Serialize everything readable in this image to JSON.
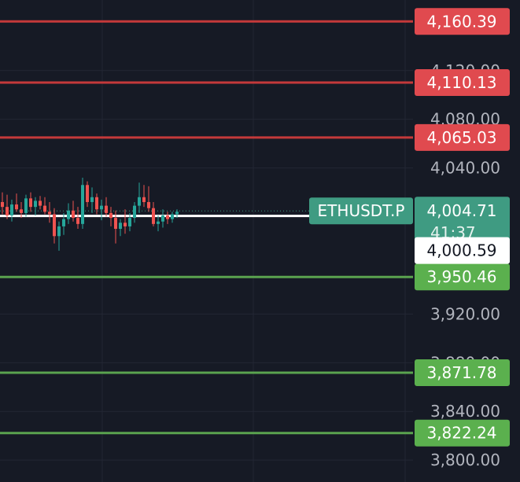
{
  "chart_data": {
    "type": "candlestick",
    "symbol": "ETHUSDT.P",
    "price_axis": {
      "range": [
        3782,
        4178
      ],
      "tick_labels": [
        "4,120.00",
        "4,080.00",
        "4,040.00",
        "3,920.00",
        "3,880.00",
        "3,840.00",
        "3,800.00"
      ],
      "tick_values": [
        4120,
        4080,
        4040,
        3920,
        3880,
        3840,
        3800
      ]
    },
    "current_price": {
      "value": 4004.71,
      "label": "4,004.71",
      "countdown": "41:37",
      "color": "#3f9b82"
    },
    "marked_level": {
      "value": 4000.59,
      "label": "4,000.59",
      "color": "#ffffff"
    },
    "resistance_levels": [
      {
        "value": 4160.39,
        "label": "4,160.39"
      },
      {
        "value": 4110.13,
        "label": "4,110.13"
      },
      {
        "value": 4065.03,
        "label": "4,065.03"
      }
    ],
    "support_levels": [
      {
        "value": 3950.46,
        "label": "3,950.46"
      },
      {
        "value": 3871.78,
        "label": "3,871.78"
      },
      {
        "value": 3822.24,
        "label": "3,822.24"
      }
    ],
    "colors": {
      "up": "#26a69a",
      "down": "#ef5350",
      "resistance": "#c4393a",
      "resistance_tag": "#e04a4f",
      "support": "#5aa34f",
      "support_tag": "#5bb04e",
      "grid": "#232734"
    },
    "candles": [
      {
        "o": 4012,
        "h": 4020,
        "l": 4002,
        "c": 4008
      },
      {
        "o": 4008,
        "h": 4018,
        "l": 3998,
        "c": 4001
      },
      {
        "o": 4001,
        "h": 4014,
        "l": 3996,
        "c": 4010
      },
      {
        "o": 4010,
        "h": 4019,
        "l": 4004,
        "c": 4006
      },
      {
        "o": 4006,
        "h": 4012,
        "l": 3999,
        "c": 4003
      },
      {
        "o": 4003,
        "h": 4018,
        "l": 4000,
        "c": 4015
      },
      {
        "o": 4015,
        "h": 4020,
        "l": 4004,
        "c": 4008
      },
      {
        "o": 4008,
        "h": 4016,
        "l": 4001,
        "c": 4013
      },
      {
        "o": 4013,
        "h": 4017,
        "l": 4006,
        "c": 4009
      },
      {
        "o": 4009,
        "h": 4016,
        "l": 4002,
        "c": 4004
      },
      {
        "o": 4004,
        "h": 4012,
        "l": 3995,
        "c": 4002
      },
      {
        "o": 4002,
        "h": 4007,
        "l": 3978,
        "c": 3984
      },
      {
        "o": 3984,
        "h": 3996,
        "l": 3972,
        "c": 3992
      },
      {
        "o": 3992,
        "h": 4003,
        "l": 3985,
        "c": 3998
      },
      {
        "o": 3998,
        "h": 4011,
        "l": 3994,
        "c": 4005
      },
      {
        "o": 4005,
        "h": 4013,
        "l": 3996,
        "c": 3999
      },
      {
        "o": 3999,
        "h": 4008,
        "l": 3990,
        "c": 3994
      },
      {
        "o": 3994,
        "h": 4032,
        "l": 3990,
        "c": 4026
      },
      {
        "o": 4026,
        "h": 4029,
        "l": 4008,
        "c": 4012
      },
      {
        "o": 4012,
        "h": 4024,
        "l": 4003,
        "c": 4016
      },
      {
        "o": 4016,
        "h": 4019,
        "l": 4002,
        "c": 4006
      },
      {
        "o": 4006,
        "h": 4014,
        "l": 3997,
        "c": 4009
      },
      {
        "o": 4009,
        "h": 4016,
        "l": 4000,
        "c": 4003
      },
      {
        "o": 4003,
        "h": 4008,
        "l": 3992,
        "c": 3999
      },
      {
        "o": 3999,
        "h": 4005,
        "l": 3978,
        "c": 3990
      },
      {
        "o": 3990,
        "h": 3998,
        "l": 3984,
        "c": 3995
      },
      {
        "o": 3995,
        "h": 4006,
        "l": 3986,
        "c": 3992
      },
      {
        "o": 3992,
        "h": 4003,
        "l": 3988,
        "c": 3999
      },
      {
        "o": 3999,
        "h": 4012,
        "l": 3995,
        "c": 4009
      },
      {
        "o": 4009,
        "h": 4028,
        "l": 4003,
        "c": 4016
      },
      {
        "o": 4016,
        "h": 4026,
        "l": 4008,
        "c": 4012
      },
      {
        "o": 4012,
        "h": 4025,
        "l": 4004,
        "c": 4007
      },
      {
        "o": 4007,
        "h": 4012,
        "l": 3992,
        "c": 3994
      },
      {
        "o": 3994,
        "h": 4001,
        "l": 3988,
        "c": 3996
      },
      {
        "o": 3996,
        "h": 4006,
        "l": 3991,
        "c": 4001
      },
      {
        "o": 4001,
        "h": 4004,
        "l": 3994,
        "c": 3998
      },
      {
        "o": 3998,
        "h": 4004,
        "l": 3995,
        "c": 4002
      },
      {
        "o": 4002,
        "h": 4006,
        "l": 3999,
        "c": 4004
      }
    ]
  }
}
